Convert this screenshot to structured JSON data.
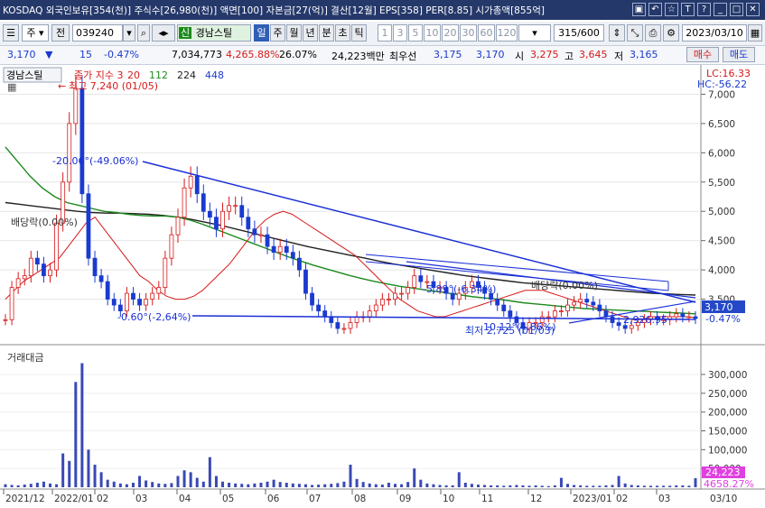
{
  "window": {
    "title": "KOSDAQ 외국인보유[354(천)] 주식수[26,980(천)] 액면[100] 자본금[27(억)] 결산[12월] EPS[358] PER[8.85] 시가총액[855억]",
    "icons": [
      "link-icon",
      "back-icon",
      "star-icon",
      "T",
      "?",
      "minimize-icon",
      "maximize-icon",
      "close-icon"
    ]
  },
  "toolbar": {
    "period_select": "주",
    "jeon_label": "전",
    "code": "039240",
    "stock_badge": "신",
    "stock_name": "경남스틸",
    "period_tabs": [
      "일",
      "주",
      "월",
      "년",
      "분",
      "초",
      "틱"
    ],
    "minute_options": [
      "1",
      "3",
      "5",
      "10",
      "20",
      "30",
      "60",
      "120"
    ],
    "count": "315",
    "count_total": "/600",
    "date": "2023/03/10"
  },
  "quote": {
    "price": "3,170",
    "change": "15",
    "change_pct": "-0.47%",
    "volume": "7,034,773",
    "volume_ratio": "4,265.88%",
    "turnover": "26.07%",
    "trade_amount": "24,223백만",
    "best_label": "최우선",
    "best_ask": "3,175",
    "best_bid": "3,170",
    "open_label": "시",
    "open": "3,275",
    "high_label": "고",
    "high": "3,645",
    "low_label": "저",
    "low": "3,165",
    "buy_button": "매수",
    "sell_button": "매도"
  },
  "chart_data": {
    "type": "candlestick+volume",
    "price_panel": {
      "stock_label": "경남스틸",
      "legend": [
        {
          "name": "종가 지수 3",
          "color": "#d61a1a"
        },
        {
          "name": "20",
          "color": "#d61a1a"
        },
        {
          "name": "112",
          "color": "#1c8a1c"
        },
        {
          "name": "224",
          "color": "#222222"
        },
        {
          "name": "448",
          "color": "#1a3ad0"
        }
      ],
      "ylim": [
        2800,
        7500
      ],
      "yticks": [
        "7,000",
        "6,500",
        "6,000",
        "5,500",
        "5,000",
        "4,500",
        "4,000",
        "3,500"
      ],
      "lc_label": "LC:16.33",
      "hc_label": "HC:-56.22",
      "current_price": "3,170",
      "current_change": "-0.47%",
      "annotations": {
        "max": "최고 7,240 (01/05)",
        "min": "최저 2,725 (01/03)",
        "trend_down": "-20.06°(-49.06%)",
        "trend_flat": "-0.60°(-2,64%)",
        "trend_mid": "-5.89°(-6.34%)",
        "dividend_1": "배당락(0.00%)",
        "dividend_2": "배당락(0.00%)",
        "up_line": "10.12°(4.86%)",
        "value_2926": "2,926.95"
      },
      "close_series": [
        3150,
        3700,
        3850,
        3900,
        4200,
        4100,
        3900,
        4000,
        4800,
        5500,
        6500,
        7100,
        5300,
        4200,
        3900,
        3800,
        3500,
        3400,
        3300,
        3600,
        3500,
        3400,
        3500,
        3600,
        3700,
        4200,
        4600,
        4900,
        5400,
        5600,
        5300,
        5000,
        4900,
        4700,
        5000,
        5100,
        5100,
        4900,
        4700,
        4600,
        4600,
        4400,
        4300,
        4400,
        4300,
        4200,
        4000,
        3600,
        3400,
        3300,
        3200,
        3100,
        3000,
        3000,
        3100,
        3200,
        3200,
        3300,
        3400,
        3500,
        3500,
        3600,
        3600,
        3700,
        3900,
        3800,
        3800,
        3700,
        3700,
        3600,
        3500,
        3600,
        3700,
        3800,
        3700,
        3600,
        3500,
        3400,
        3300,
        3200,
        3100,
        3000,
        3100,
        3100,
        3200,
        3200,
        3300,
        3300,
        3400,
        3450,
        3500,
        3450,
        3400,
        3300,
        3200,
        3100,
        3050,
        3000,
        3050,
        3100,
        3150,
        3200,
        3150,
        3150,
        3200,
        3250,
        3200,
        3200,
        3170
      ],
      "ma20": [
        3500,
        3650,
        3800,
        3900,
        4000,
        4100,
        4200,
        4400,
        4600,
        4800,
        4900,
        4700,
        4500,
        4300,
        4100,
        3900,
        3800,
        3650,
        3550,
        3500,
        3500,
        3550,
        3650,
        3800,
        3950,
        4100,
        4300,
        4500,
        4700,
        4850,
        4950,
        5000,
        4950,
        4850,
        4750,
        4650,
        4550,
        4450,
        4350,
        4250,
        4100,
        3950,
        3800,
        3650,
        3500,
        3400,
        3300,
        3250,
        3200,
        3200,
        3250,
        3300,
        3350,
        3400,
        3450,
        3500,
        3550,
        3600,
        3650,
        3650,
        3650,
        3600,
        3550,
        3500,
        3450,
        3400,
        3350,
        3300,
        3250,
        3200,
        3150,
        3150,
        3200,
        3200,
        3200,
        3200,
        3200,
        3180
      ],
      "ma112": [
        6100,
        5850,
        5600,
        5400,
        5250,
        5150,
        5100,
        5050,
        5000,
        4980,
        4950,
        4930,
        4920,
        4920,
        4900,
        4850,
        4780,
        4700,
        4620,
        4540,
        4460,
        4380,
        4300,
        4220,
        4150,
        4080,
        4020,
        3960,
        3900,
        3850,
        3800,
        3760,
        3720,
        3690,
        3660,
        3630,
        3600,
        3570,
        3540,
        3520,
        3500,
        3470,
        3440,
        3420,
        3400,
        3380,
        3360,
        3340,
        3330,
        3320,
        3310,
        3300,
        3290,
        3280,
        3270,
        3260,
        3250
      ],
      "ma224": [
        5150,
        5120,
        5090,
        5060,
        5030,
        5000,
        4980,
        4970,
        4970,
        4960,
        4950,
        4930,
        4900,
        4860,
        4810,
        4760,
        4700,
        4640,
        4580,
        4520,
        4460,
        4400,
        4350,
        4300,
        4250,
        4200,
        4150,
        4100,
        4060,
        4020,
        3980,
        3940,
        3900,
        3870,
        3840,
        3810,
        3780,
        3760,
        3740,
        3720,
        3700,
        3680,
        3660,
        3640,
        3620,
        3600,
        3590,
        3580,
        3570
      ]
    },
    "volume_panel": {
      "label": "거래대금",
      "ylim": [
        0,
        360000
      ],
      "yticks": [
        "300,000",
        "250,000",
        "200,000",
        "150,000",
        "100,000",
        "50,000"
      ],
      "current_value": "24,223",
      "current_pct": "4658.27%",
      "values": [
        8000,
        6000,
        5000,
        7000,
        9000,
        12000,
        15000,
        10000,
        8000,
        90000,
        70000,
        280000,
        330000,
        100000,
        60000,
        40000,
        20000,
        15000,
        10000,
        8000,
        12000,
        30000,
        18000,
        14000,
        10000,
        9000,
        11000,
        30000,
        45000,
        40000,
        25000,
        15000,
        80000,
        30000,
        15000,
        12000,
        10000,
        9000,
        8000,
        10000,
        12000,
        15000,
        20000,
        14000,
        12000,
        10000,
        9000,
        8000,
        6000,
        7000,
        8000,
        9000,
        11000,
        15000,
        60000,
        22000,
        14000,
        10000,
        8000,
        7000,
        12000,
        9000,
        8000,
        14000,
        50000,
        20000,
        10000,
        8000,
        6000,
        5000,
        5000,
        40000,
        12000,
        9000,
        7000,
        6000,
        5000,
        5000,
        4000,
        5000,
        6000,
        5000,
        4000,
        5000,
        4000,
        3000,
        5000,
        25000,
        9000,
        6000,
        5000,
        4000,
        4000,
        4000,
        5000,
        6000,
        30000,
        10000,
        6000,
        5000,
        4000,
        4000,
        4000,
        4000,
        4000,
        5000,
        5000,
        4000,
        24223
      ]
    },
    "x_ticks": [
      "2021/12",
      "2022/01",
      "02",
      "03",
      "04",
      "05",
      "06",
      "07",
      "08",
      "09",
      "10",
      "11",
      "12",
      "2023/01",
      "02",
      "03",
      "03/10"
    ]
  },
  "colors": {
    "title_bg": "#25386a",
    "up": "#d61a1a",
    "down": "#1a3ad0",
    "trend_line": "#1a2fd6",
    "ma112": "#1c8a1c",
    "ma224": "#222222",
    "current_price_bg": "#2448c8",
    "volume_value_bg": "#e040e0"
  }
}
